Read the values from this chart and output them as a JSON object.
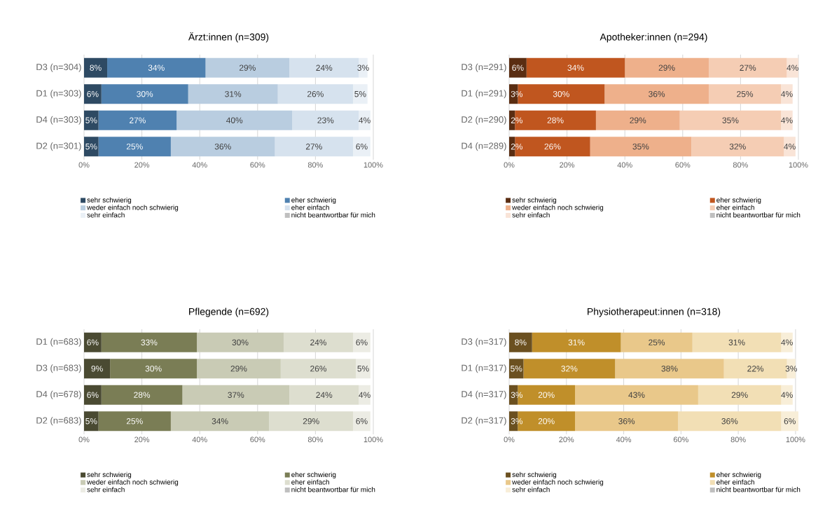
{
  "chart_data": [
    {
      "type": "bar",
      "orientation": "horizontal",
      "stacked": true,
      "title": "Ärzt:innen (n=309)",
      "categories": [
        "D3 (n=304)",
        "D1 (n=303)",
        "D4 (n=303)",
        "D2 (n=301)"
      ],
      "series": [
        {
          "name": "sehr schwierig",
          "color": "#2e4a63",
          "values": [
            8,
            6,
            5,
            5
          ],
          "value_labels": [
            "8%",
            "6%",
            "5%",
            "5%"
          ]
        },
        {
          "name": "eher schwierig",
          "color": "#4f81b0",
          "values": [
            34,
            30,
            27,
            25
          ],
          "value_labels": [
            "34%",
            "30%",
            "27%",
            "25%"
          ]
        },
        {
          "name": "weder einfach noch schwierig",
          "color": "#b9cde0",
          "values": [
            29,
            31,
            40,
            36
          ],
          "value_labels": [
            "29%",
            "31%",
            "40%",
            "36%"
          ]
        },
        {
          "name": "eher einfach",
          "color": "#d6e2ee",
          "values": [
            24,
            26,
            23,
            27
          ],
          "value_labels": [
            "24%",
            "26%",
            "23%",
            "27%"
          ]
        },
        {
          "name": "sehr einfach",
          "color": "#eaf0f6",
          "values": [
            3,
            5,
            4,
            6
          ],
          "value_labels": [
            "3%",
            "5%",
            "4%",
            "6%"
          ]
        },
        {
          "name": "nicht beantwortbar für mich",
          "color": "#bfbfbf",
          "values": [
            null,
            null,
            null,
            null
          ]
        }
      ],
      "xlim": [
        0,
        100
      ],
      "xticks": [
        {
          "value": 0,
          "label": "0%"
        },
        {
          "value": 20,
          "label": "20%"
        },
        {
          "value": 40,
          "label": "40%"
        },
        {
          "value": 60,
          "label": "60%"
        },
        {
          "value": 80,
          "label": "80%"
        },
        {
          "value": 100,
          "label": "100%"
        }
      ],
      "grid": "x",
      "legend": "bottom"
    },
    {
      "type": "bar",
      "orientation": "horizontal",
      "stacked": true,
      "title": "Apotheker:innen (n=294)",
      "categories": [
        "D3 (n=291)",
        "D1 (n=291)",
        "D2 (n=290)",
        "D4 (n=289)"
      ],
      "series": [
        {
          "name": "sehr schwierig",
          "color": "#5a2d12",
          "values": [
            6,
            3,
            2,
            2
          ],
          "value_labels": [
            "6%",
            "3%",
            "2%",
            "2%"
          ]
        },
        {
          "name": "eher schwierig",
          "color": "#c0561f",
          "values": [
            34,
            30,
            28,
            26
          ],
          "value_labels": [
            "34%",
            "30%",
            "28%",
            "26%"
          ]
        },
        {
          "name": "weder einfach noch schwierig",
          "color": "#eeb08b",
          "values": [
            29,
            36,
            29,
            35
          ],
          "value_labels": [
            "29%",
            "36%",
            "29%",
            "35%"
          ]
        },
        {
          "name": "eher einfach",
          "color": "#f5cdb4",
          "values": [
            27,
            25,
            35,
            32
          ],
          "value_labels": [
            "27%",
            "25%",
            "35%",
            "32%"
          ]
        },
        {
          "name": "sehr einfach",
          "color": "#f9e4d7",
          "values": [
            4,
            4,
            4,
            4
          ],
          "value_labels": [
            "4%",
            "4%",
            "4%",
            "4%"
          ]
        },
        {
          "name": "nicht beantwortbar für mich",
          "color": "#bfbfbf",
          "values": [
            null,
            null,
            null,
            null
          ]
        }
      ],
      "xlim": [
        0,
        100
      ],
      "xticks": [
        {
          "value": 0,
          "label": "0%"
        },
        {
          "value": 20,
          "label": "20%"
        },
        {
          "value": 40,
          "label": "40%"
        },
        {
          "value": 60,
          "label": "60%"
        },
        {
          "value": 80,
          "label": "80%"
        },
        {
          "value": 100,
          "label": "100%"
        }
      ],
      "grid": "x",
      "legend": "bottom"
    },
    {
      "type": "bar",
      "orientation": "horizontal",
      "stacked": true,
      "title": "Pflegende (n=692)",
      "categories": [
        "D1 (n=683)",
        "D3 (n=683)",
        "D4 (n=678)",
        "D2 (n=683)"
      ],
      "series": [
        {
          "name": "sehr schwierig",
          "color": "#4a4a32",
          "values": [
            6,
            9,
            6,
            5
          ],
          "value_labels": [
            "6%",
            "9%",
            "6%",
            "5%"
          ]
        },
        {
          "name": "eher schwierig",
          "color": "#7a7d55",
          "values": [
            33,
            30,
            28,
            25
          ],
          "value_labels": [
            "33%",
            "30%",
            "28%",
            "25%"
          ]
        },
        {
          "name": "weder einfach noch schwierig",
          "color": "#c9cbb5",
          "values": [
            30,
            29,
            37,
            34
          ],
          "value_labels": [
            "30%",
            "29%",
            "37%",
            "34%"
          ]
        },
        {
          "name": "eher einfach",
          "color": "#dddecf",
          "values": [
            24,
            26,
            24,
            29
          ],
          "value_labels": [
            "24%",
            "26%",
            "24%",
            "29%"
          ]
        },
        {
          "name": "sehr einfach",
          "color": "#ececE4",
          "values": [
            6,
            5,
            4,
            6
          ],
          "value_labels": [
            "6%",
            "5%",
            "4%",
            "6%"
          ]
        },
        {
          "name": "nicht beantwortbar für mich",
          "color": "#bfbfbf",
          "values": [
            null,
            null,
            null,
            null
          ]
        }
      ],
      "xlim": [
        0,
        100
      ],
      "xticks": [
        {
          "value": 0,
          "label": "0%"
        },
        {
          "value": 20,
          "label": "20%"
        },
        {
          "value": 40,
          "label": "40%"
        },
        {
          "value": 60,
          "label": "60%"
        },
        {
          "value": 80,
          "label": "80%"
        },
        {
          "value": 100,
          "label": "100%"
        }
      ],
      "grid": "x",
      "legend": "bottom"
    },
    {
      "type": "bar",
      "orientation": "horizontal",
      "stacked": true,
      "title": "Physiotherapeut:innen (n=318)",
      "categories": [
        "D3 (n=317)",
        "D1 (n=317)",
        "D4 (n=317)",
        "D2 (n=317)"
      ],
      "series": [
        {
          "name": "sehr schwierig",
          "color": "#6b5020",
          "values": [
            8,
            5,
            3,
            3
          ],
          "value_labels": [
            "8%",
            "5%",
            "3%",
            "3%"
          ]
        },
        {
          "name": "eher schwierig",
          "color": "#c08f2a",
          "values": [
            31,
            32,
            20,
            20
          ],
          "value_labels": [
            "31%",
            "32%",
            "20%",
            "20%"
          ]
        },
        {
          "name": "weder einfach noch schwierig",
          "color": "#e9c88a",
          "values": [
            25,
            38,
            43,
            36
          ],
          "value_labels": [
            "25%",
            "38%",
            "43%",
            "36%"
          ]
        },
        {
          "name": "eher einfach",
          "color": "#f2dfb5",
          "values": [
            31,
            22,
            29,
            36
          ],
          "value_labels": [
            "31%",
            "22%",
            "29%",
            "36%"
          ]
        },
        {
          "name": "sehr einfach",
          "color": "#f8eed8",
          "values": [
            4,
            3,
            4,
            6
          ],
          "value_labels": [
            "4%",
            "3%",
            "4%",
            "6%"
          ]
        },
        {
          "name": "nicht beantwortbar für mich",
          "color": "#bfbfbf",
          "values": [
            null,
            null,
            null,
            null
          ]
        }
      ],
      "xlim": [
        0,
        101
      ],
      "xticks": [
        {
          "value": 0,
          "label": "0%"
        },
        {
          "value": 20,
          "label": "20%"
        },
        {
          "value": 40,
          "label": "40%"
        },
        {
          "value": 60,
          "label": "60%"
        },
        {
          "value": 80,
          "label": "80%"
        },
        {
          "value": 100,
          "label": "100%"
        }
      ],
      "grid": "x",
      "legend": "bottom"
    }
  ]
}
